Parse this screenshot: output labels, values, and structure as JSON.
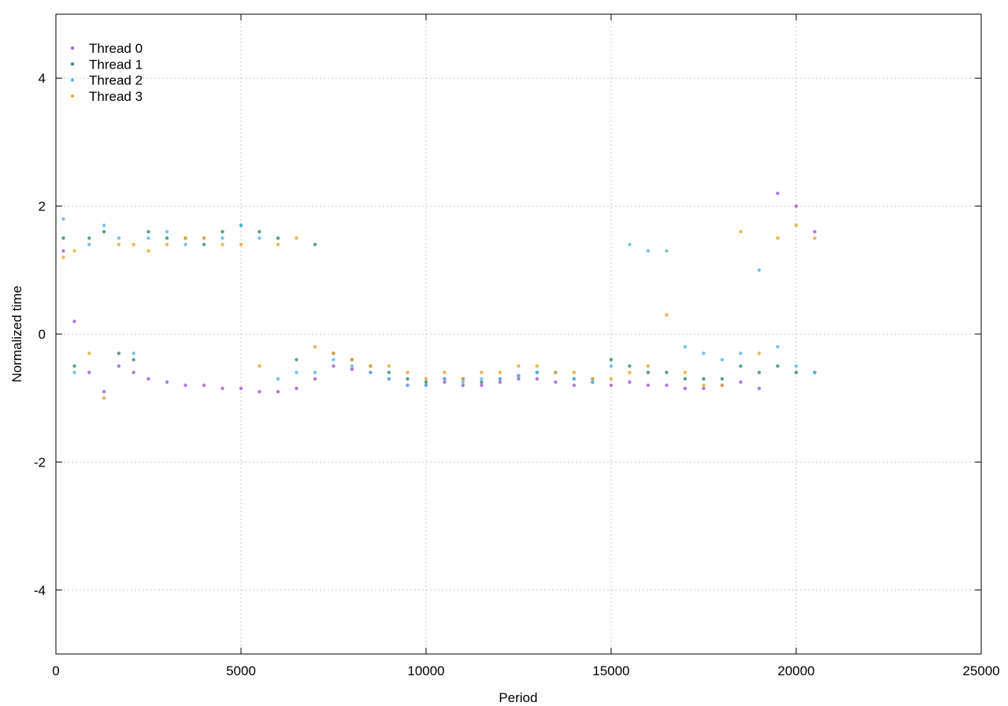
{
  "chart_data": {
    "type": "scatter",
    "title": "",
    "xlabel": "Period",
    "ylabel": "Normalized time",
    "xlim": [
      0,
      25000
    ],
    "ylim": [
      -5,
      5
    ],
    "xticks": [
      0,
      5000,
      10000,
      15000,
      20000,
      25000
    ],
    "yticks": [
      -4,
      -2,
      0,
      2,
      4
    ],
    "grid": true,
    "legend_position": "top-left",
    "series": [
      {
        "name": "Thread 0",
        "color": "#9b59d0",
        "points": [
          [
            200,
            1.3
          ],
          [
            500,
            0.2
          ],
          [
            900,
            -0.6
          ],
          [
            1300,
            -0.9
          ],
          [
            1700,
            -0.5
          ],
          [
            2100,
            -0.6
          ],
          [
            2500,
            -0.7
          ],
          [
            3000,
            -0.75
          ],
          [
            3500,
            -0.8
          ],
          [
            4000,
            -0.8
          ],
          [
            4500,
            -0.85
          ],
          [
            5000,
            -0.85
          ],
          [
            5500,
            -0.9
          ],
          [
            6000,
            -0.9
          ],
          [
            6500,
            -0.85
          ],
          [
            7000,
            -0.7
          ],
          [
            7500,
            -0.5
          ],
          [
            8000,
            -0.55
          ],
          [
            8500,
            -0.6
          ],
          [
            9000,
            -0.7
          ],
          [
            9500,
            -0.8
          ],
          [
            10000,
            -0.8
          ],
          [
            10500,
            -0.75
          ],
          [
            11000,
            -0.8
          ],
          [
            11500,
            -0.8
          ],
          [
            12000,
            -0.75
          ],
          [
            12500,
            -0.7
          ],
          [
            13000,
            -0.7
          ],
          [
            13500,
            -0.75
          ],
          [
            14000,
            -0.8
          ],
          [
            14500,
            -0.75
          ],
          [
            15000,
            -0.8
          ],
          [
            15500,
            -0.75
          ],
          [
            16000,
            -0.8
          ],
          [
            16500,
            -0.8
          ],
          [
            17000,
            -0.85
          ],
          [
            17500,
            -0.85
          ],
          [
            18000,
            -0.8
          ],
          [
            18500,
            -0.75
          ],
          [
            19000,
            -0.85
          ],
          [
            19500,
            2.2
          ],
          [
            20000,
            2.0
          ],
          [
            20500,
            1.6
          ]
        ]
      },
      {
        "name": "Thread 1",
        "color": "#2e8b6e",
        "points": [
          [
            200,
            1.5
          ],
          [
            500,
            -0.5
          ],
          [
            900,
            1.5
          ],
          [
            1300,
            1.6
          ],
          [
            1700,
            -0.3
          ],
          [
            2100,
            -0.4
          ],
          [
            2500,
            1.6
          ],
          [
            3000,
            1.5
          ],
          [
            3500,
            1.5
          ],
          [
            4000,
            1.4
          ],
          [
            4500,
            1.6
          ],
          [
            5000,
            1.7
          ],
          [
            5500,
            1.6
          ],
          [
            6000,
            1.5
          ],
          [
            6500,
            -0.4
          ],
          [
            7000,
            1.4
          ],
          [
            7500,
            -0.3
          ],
          [
            8000,
            -0.4
          ],
          [
            8500,
            -0.5
          ],
          [
            9000,
            -0.6
          ],
          [
            9500,
            -0.7
          ],
          [
            10000,
            -0.75
          ],
          [
            10500,
            -0.7
          ],
          [
            11000,
            -0.7
          ],
          [
            11500,
            -0.75
          ],
          [
            12000,
            -0.7
          ],
          [
            12500,
            -0.65
          ],
          [
            13000,
            -0.6
          ],
          [
            13500,
            -0.6
          ],
          [
            14000,
            -0.7
          ],
          [
            14500,
            -0.7
          ],
          [
            15000,
            -0.4
          ],
          [
            15500,
            -0.5
          ],
          [
            16000,
            -0.6
          ],
          [
            16500,
            -0.6
          ],
          [
            17000,
            -0.7
          ],
          [
            17500,
            -0.7
          ],
          [
            18000,
            -0.7
          ],
          [
            18500,
            -0.5
          ],
          [
            19000,
            -0.6
          ],
          [
            19500,
            -0.5
          ],
          [
            20000,
            -0.6
          ],
          [
            20500,
            -0.6
          ]
        ]
      },
      {
        "name": "Thread 2",
        "color": "#56b4e9",
        "points": [
          [
            200,
            1.8
          ],
          [
            500,
            -0.6
          ],
          [
            900,
            1.4
          ],
          [
            1300,
            1.7
          ],
          [
            1700,
            1.5
          ],
          [
            2100,
            -0.3
          ],
          [
            2500,
            1.5
          ],
          [
            3000,
            1.6
          ],
          [
            3500,
            1.4
          ],
          [
            4000,
            1.5
          ],
          [
            4500,
            1.5
          ],
          [
            5000,
            1.7
          ],
          [
            5500,
            1.5
          ],
          [
            6000,
            -0.7
          ],
          [
            6500,
            -0.6
          ],
          [
            7000,
            -0.6
          ],
          [
            7500,
            -0.4
          ],
          [
            8000,
            -0.5
          ],
          [
            8500,
            -0.6
          ],
          [
            9000,
            -0.7
          ],
          [
            9500,
            -0.8
          ],
          [
            10000,
            -0.8
          ],
          [
            10500,
            -0.7
          ],
          [
            11000,
            -0.75
          ],
          [
            11500,
            -0.7
          ],
          [
            12000,
            -0.7
          ],
          [
            12500,
            -0.65
          ],
          [
            13000,
            -0.6
          ],
          [
            13500,
            -0.6
          ],
          [
            14000,
            -0.7
          ],
          [
            14500,
            -0.75
          ],
          [
            15000,
            -0.5
          ],
          [
            15500,
            1.4
          ],
          [
            16000,
            1.3
          ],
          [
            16500,
            1.3
          ],
          [
            17000,
            -0.2
          ],
          [
            17500,
            -0.3
          ],
          [
            18000,
            -0.4
          ],
          [
            18500,
            -0.3
          ],
          [
            19000,
            1.0
          ],
          [
            19500,
            -0.2
          ],
          [
            20000,
            -0.5
          ],
          [
            20500,
            -0.6
          ]
        ]
      },
      {
        "name": "Thread 3",
        "color": "#e0a72c",
        "points": [
          [
            200,
            1.2
          ],
          [
            500,
            1.3
          ],
          [
            900,
            -0.3
          ],
          [
            1300,
            -1.0
          ],
          [
            1700,
            1.4
          ],
          [
            2100,
            1.4
          ],
          [
            2500,
            1.3
          ],
          [
            3000,
            1.4
          ],
          [
            3500,
            1.5
          ],
          [
            4000,
            1.5
          ],
          [
            4500,
            1.4
          ],
          [
            5000,
            1.4
          ],
          [
            5500,
            -0.5
          ],
          [
            6000,
            1.4
          ],
          [
            6500,
            1.5
          ],
          [
            7000,
            -0.2
          ],
          [
            7500,
            -0.3
          ],
          [
            8000,
            -0.4
          ],
          [
            8500,
            -0.5
          ],
          [
            9000,
            -0.5
          ],
          [
            9500,
            -0.6
          ],
          [
            10000,
            -0.7
          ],
          [
            10500,
            -0.6
          ],
          [
            11000,
            -0.7
          ],
          [
            11500,
            -0.6
          ],
          [
            12000,
            -0.6
          ],
          [
            12500,
            -0.5
          ],
          [
            13000,
            -0.5
          ],
          [
            13500,
            -0.6
          ],
          [
            14000,
            -0.6
          ],
          [
            14500,
            -0.7
          ],
          [
            15000,
            -0.7
          ],
          [
            15500,
            -0.6
          ],
          [
            16000,
            -0.5
          ],
          [
            16500,
            0.3
          ],
          [
            17000,
            -0.6
          ],
          [
            17500,
            -0.8
          ],
          [
            18000,
            -0.8
          ],
          [
            18500,
            1.6
          ],
          [
            19000,
            -0.3
          ],
          [
            19500,
            1.5
          ],
          [
            20000,
            1.7
          ],
          [
            20500,
            1.5
          ]
        ]
      }
    ]
  }
}
